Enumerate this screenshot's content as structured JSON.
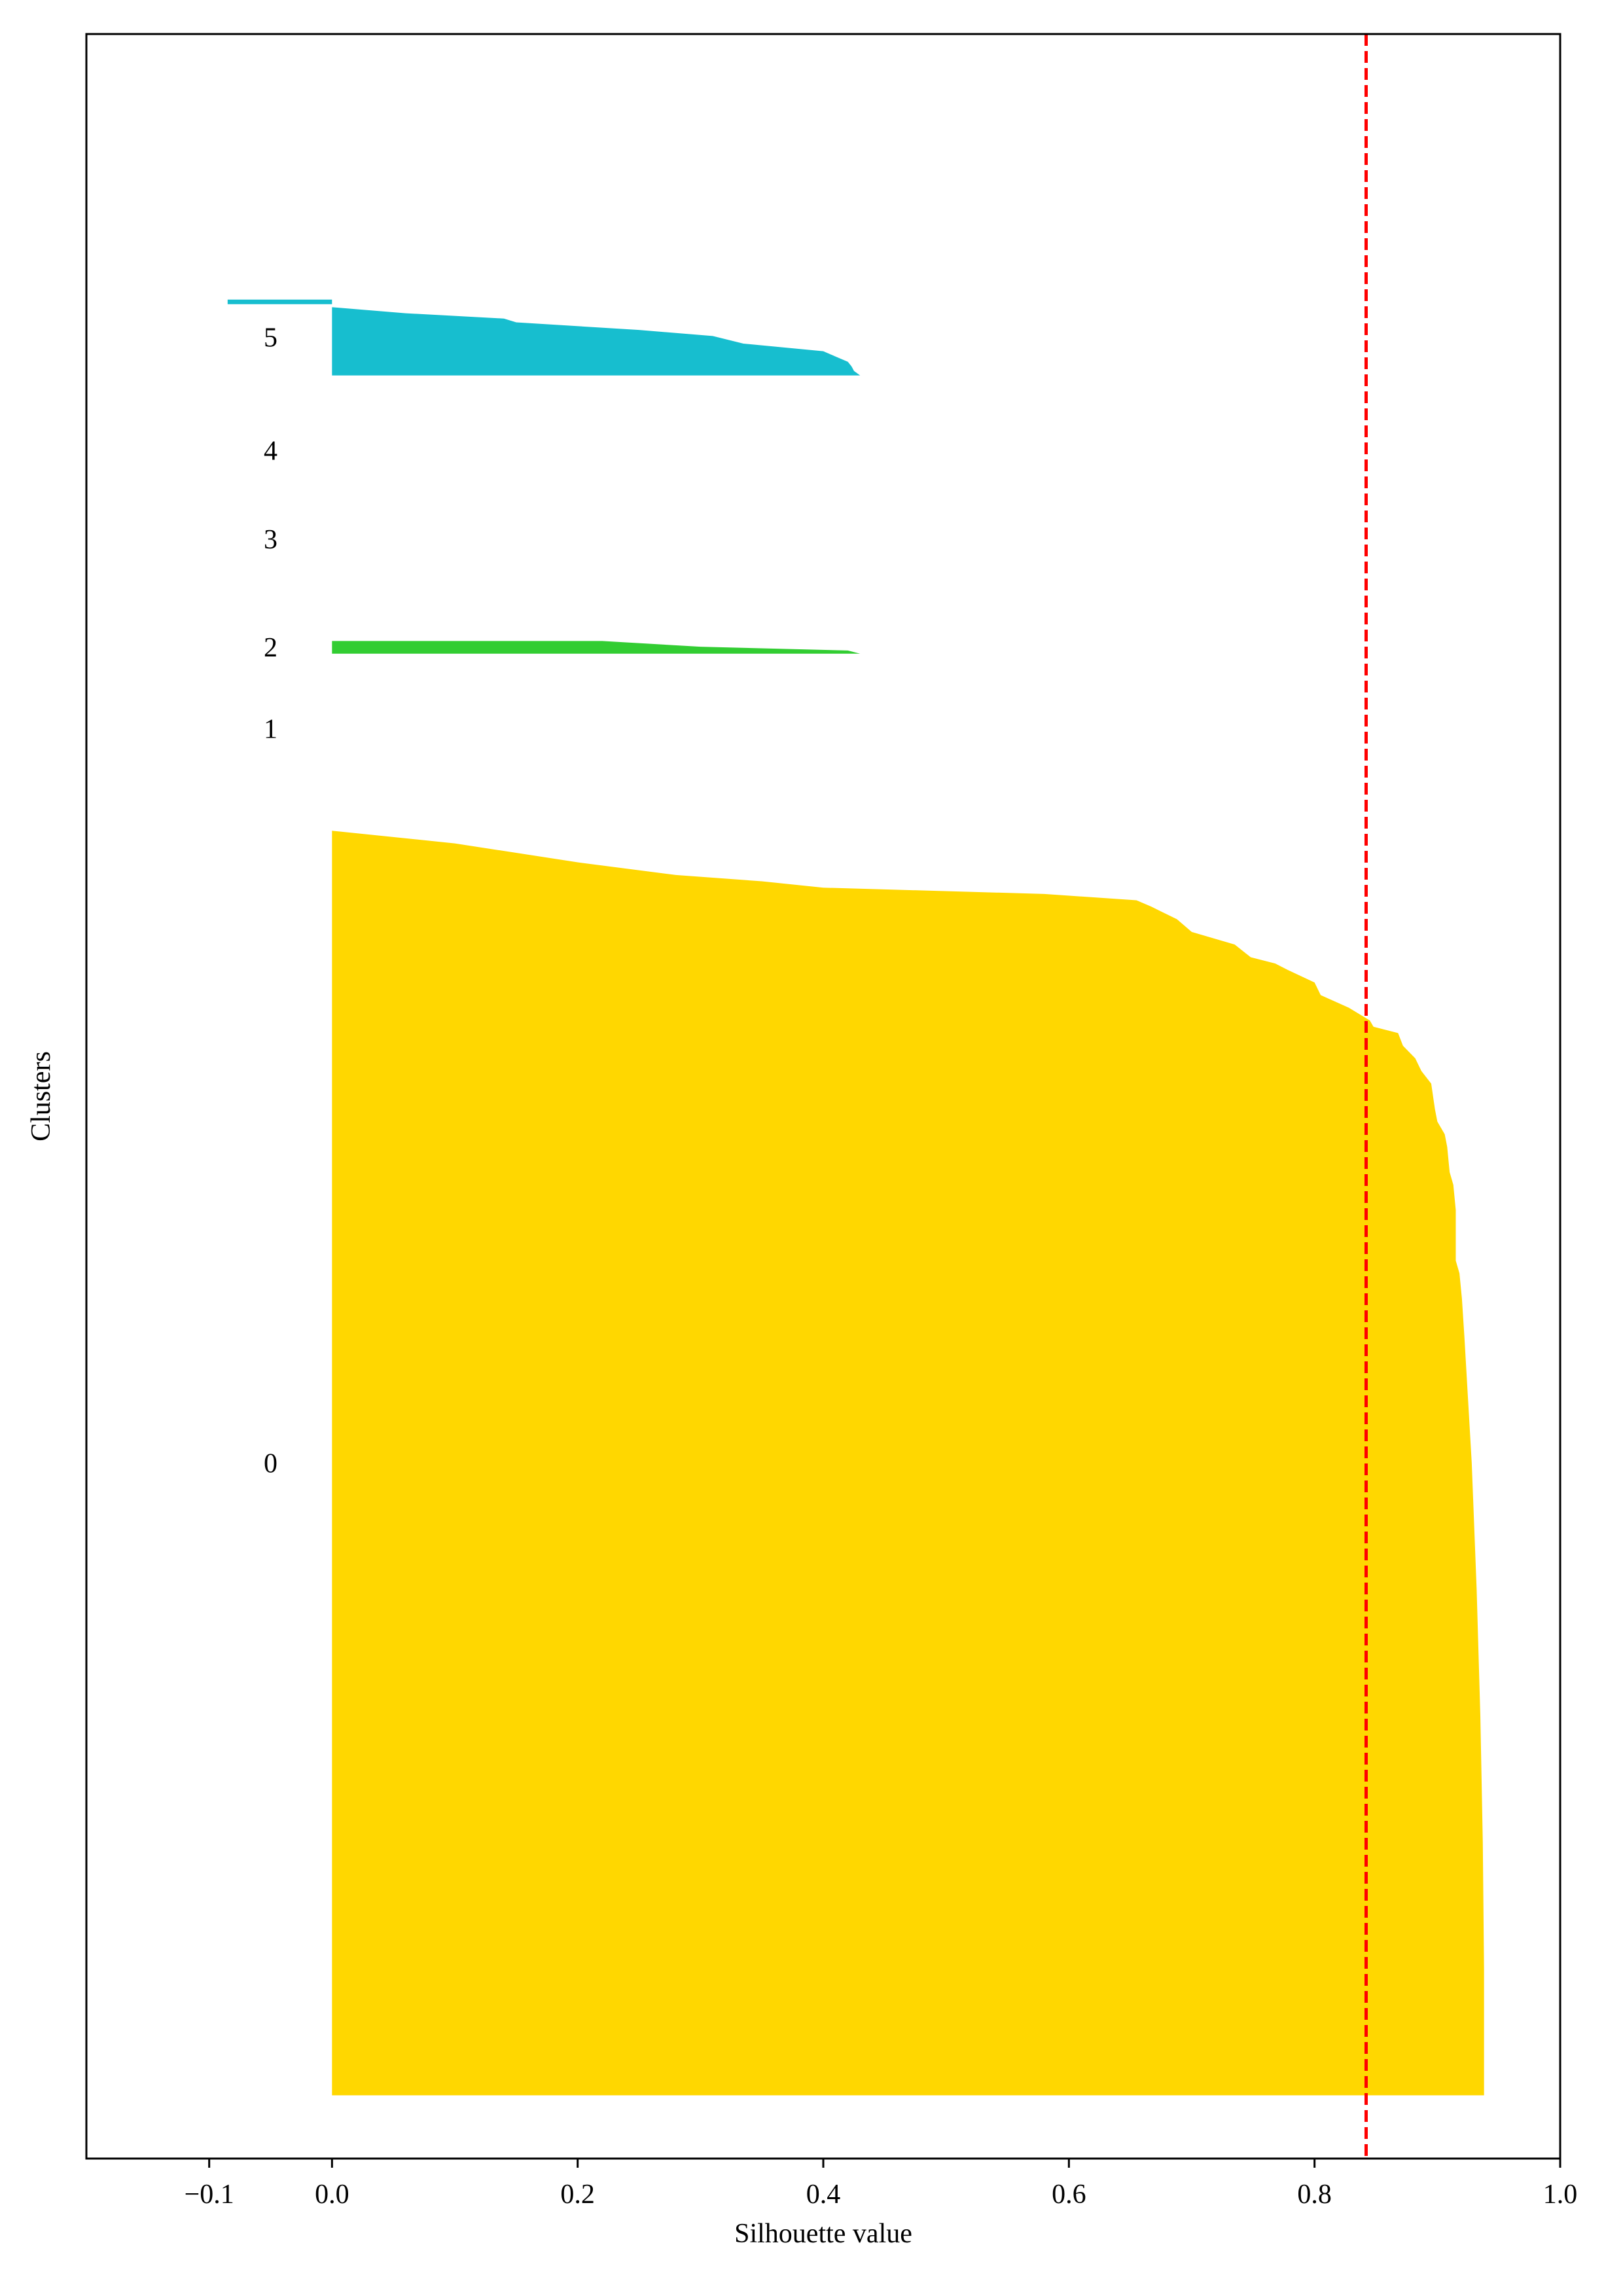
{
  "chart_data": {
    "type": "area",
    "title": "",
    "xlabel": "Silhouette value",
    "ylabel": "Clusters",
    "xlim": [
      -0.2,
      1.0
    ],
    "xticks": [
      -0.1,
      0.0,
      0.2,
      0.4,
      0.6,
      0.8,
      1.0
    ],
    "xtick_labels": [
      "−0.1",
      "0.0",
      "0.2",
      "0.4",
      "0.6",
      "0.8",
      "1.0"
    ],
    "grid": false,
    "legend": "none",
    "average_silhouette": 0.842,
    "average_line_color": "#ff0000",
    "cluster_order_bottom_to_top": [
      "0",
      "1",
      "2",
      "3",
      "4",
      "5"
    ],
    "clusters": [
      {
        "name": "0",
        "label": "0",
        "color": "#ffd700",
        "size": 1000,
        "profile": [
          [
            0,
            0.938
          ],
          [
            0.1,
            0.938
          ],
          [
            0.2,
            0.937
          ],
          [
            0.3,
            0.935
          ],
          [
            0.4,
            0.932
          ],
          [
            0.45,
            0.93
          ],
          [
            0.5,
            0.928
          ],
          [
            0.55,
            0.925
          ],
          [
            0.6,
            0.922
          ],
          [
            0.63,
            0.92
          ],
          [
            0.65,
            0.918
          ],
          [
            0.66,
            0.915
          ],
          [
            0.68,
            0.915
          ],
          [
            0.7,
            0.915
          ],
          [
            0.72,
            0.913
          ],
          [
            0.73,
            0.91
          ],
          [
            0.75,
            0.908
          ],
          [
            0.76,
            0.906
          ],
          [
            0.77,
            0.9
          ],
          [
            0.78,
            0.898
          ],
          [
            0.8,
            0.895
          ],
          [
            0.81,
            0.887
          ],
          [
            0.82,
            0.882
          ],
          [
            0.83,
            0.872
          ],
          [
            0.84,
            0.868
          ],
          [
            0.845,
            0.848
          ],
          [
            0.85,
            0.845
          ],
          [
            0.86,
            0.828
          ],
          [
            0.87,
            0.805
          ],
          [
            0.88,
            0.8
          ],
          [
            0.89,
            0.778
          ],
          [
            0.895,
            0.768
          ],
          [
            0.9,
            0.748
          ],
          [
            0.91,
            0.735
          ],
          [
            0.92,
            0.7
          ],
          [
            0.93,
            0.688
          ],
          [
            0.94,
            0.667
          ],
          [
            0.945,
            0.655
          ],
          [
            0.95,
            0.58
          ],
          [
            0.955,
            0.4
          ],
          [
            0.96,
            0.35
          ],
          [
            0.965,
            0.28
          ],
          [
            0.975,
            0.2
          ],
          [
            0.99,
            0.1
          ],
          [
            1.0,
            0.0
          ]
        ]
      },
      {
        "name": "1",
        "label": "1",
        "color": "#ff8c00",
        "size": 0,
        "profile": []
      },
      {
        "name": "2",
        "label": "2",
        "color": "#32cd32",
        "size": 10,
        "profile": [
          [
            0,
            0.43
          ],
          [
            0.25,
            0.42
          ],
          [
            0.55,
            0.3
          ],
          [
            1.0,
            0.22
          ],
          [
            1.0,
            0.0
          ]
        ]
      },
      {
        "name": "3",
        "label": "3",
        "color": "#1e90ff",
        "size": 0,
        "profile": []
      },
      {
        "name": "4",
        "label": "4",
        "color": "#9370db",
        "size": 0,
        "profile": []
      },
      {
        "name": "5",
        "label": "5",
        "color": "#17becf",
        "size": 60,
        "profile": [
          [
            0,
            0.43
          ],
          [
            0.06,
            0.425
          ],
          [
            0.12,
            0.423
          ],
          [
            0.18,
            0.42
          ],
          [
            0.25,
            0.41
          ],
          [
            0.32,
            0.4
          ],
          [
            0.42,
            0.335
          ],
          [
            0.52,
            0.31
          ],
          [
            0.6,
            0.25
          ],
          [
            0.7,
            0.15
          ],
          [
            0.75,
            0.14
          ],
          [
            0.82,
            0.06
          ],
          [
            0.9,
            0.0
          ],
          [
            0.94,
            0.0
          ],
          [
            0.94,
            -0.085
          ],
          [
            1.0,
            -0.085
          ],
          [
            1.0,
            0.0
          ]
        ]
      }
    ]
  }
}
